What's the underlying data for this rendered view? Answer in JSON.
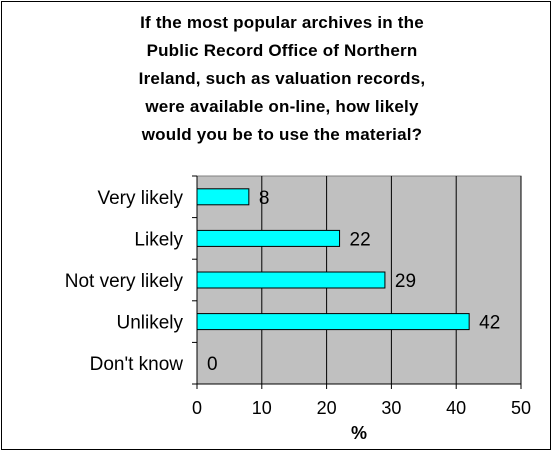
{
  "chart_data": {
    "type": "bar",
    "orientation": "horizontal",
    "title_lines": [
      "If the most popular archives in the",
      "Public Record Office of Northern",
      "Ireland, such as valuation records,",
      "were available on-line, how likely",
      "would you be to use the material?"
    ],
    "categories": [
      "Very likely",
      "Likely",
      "Not very likely",
      "Unlikely",
      "Don't know"
    ],
    "values": [
      8,
      22,
      29,
      42,
      0
    ],
    "xlabel": "%",
    "ylabel": "",
    "xlim": [
      0,
      50
    ],
    "xticks": [
      0,
      10,
      20,
      30,
      40,
      50
    ],
    "grid": true,
    "legend": "none",
    "colors": {
      "bar_fill": "#00ffff",
      "bar_stroke": "#000000",
      "plot_background": "#c0c0c0",
      "gridline": "#000000"
    }
  }
}
